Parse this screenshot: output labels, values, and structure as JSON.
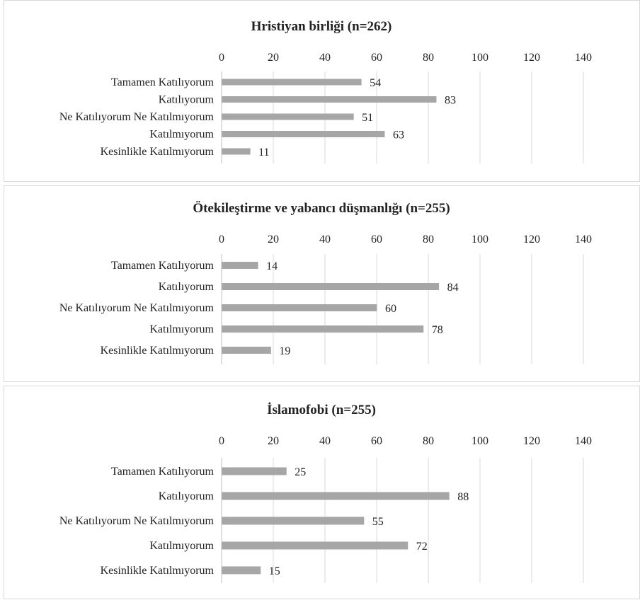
{
  "style": {
    "bar_color": "#a6a6a6",
    "grid_color": "#d9d9d9",
    "text_color": "#222222"
  },
  "chart_data": [
    {
      "type": "bar",
      "orientation": "horizontal",
      "title": "Hristiyan birliği (n=262)",
      "categories": [
        "Tamamen Katılıyorum",
        "Katılıyorum",
        "Ne Katılıyorum Ne Katılmıyorum",
        "Katılmıyorum",
        "Kesinlikle Katılmıyorum"
      ],
      "values": [
        54,
        83,
        51,
        63,
        11
      ],
      "xlim": [
        0,
        140
      ],
      "xticks": [
        0,
        20,
        40,
        60,
        80,
        100,
        120,
        140
      ],
      "axis_position": "top",
      "grid": true,
      "data_labels": true
    },
    {
      "type": "bar",
      "orientation": "horizontal",
      "title": "Ötekileştirme ve yabancı düşmanlığı (n=255)",
      "categories": [
        "Tamamen Katılıyorum",
        "Katılıyorum",
        "Ne Katılıyorum Ne Katılmıyorum",
        "Katılmıyorum",
        "Kesinlikle Katılmıyorum"
      ],
      "values": [
        14,
        84,
        60,
        78,
        19
      ],
      "xlim": [
        0,
        140
      ],
      "xticks": [
        0,
        20,
        40,
        60,
        80,
        100,
        120,
        140
      ],
      "axis_position": "top",
      "grid": true,
      "data_labels": true
    },
    {
      "type": "bar",
      "orientation": "horizontal",
      "title": "İslamofobi (n=255)",
      "categories": [
        "Tamamen Katılıyorum",
        "Katılıyorum",
        "Ne Katılıyorum Ne Katılmıyorum",
        "Katılmıyorum",
        "Kesinlikle Katılmıyorum"
      ],
      "values": [
        25,
        88,
        55,
        72,
        15
      ],
      "xlim": [
        0,
        140
      ],
      "xticks": [
        0,
        20,
        40,
        60,
        80,
        100,
        120,
        140
      ],
      "axis_position": "top",
      "grid": true,
      "data_labels": true
    }
  ]
}
